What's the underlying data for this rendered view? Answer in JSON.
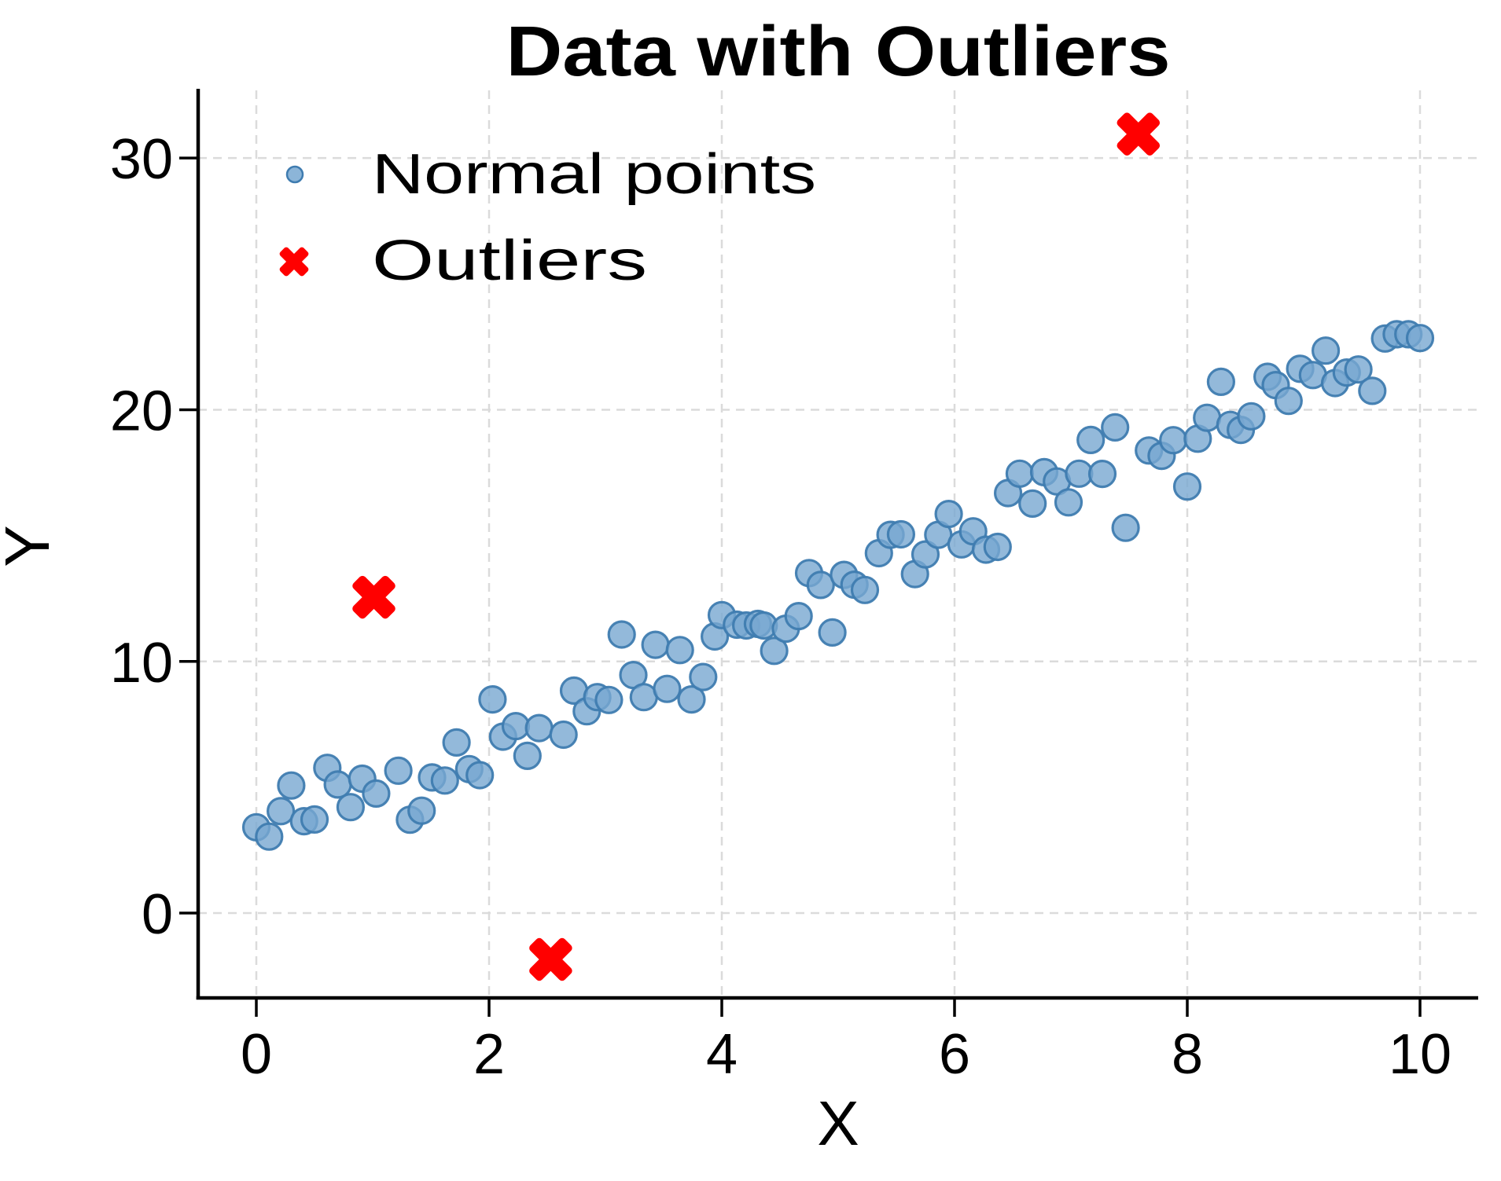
{
  "title": "Data with Outliers",
  "axes": {
    "x_label": "X",
    "y_label": "Y",
    "x_ticks": [
      0,
      2,
      4,
      6,
      8,
      10
    ],
    "y_ticks": [
      0,
      10,
      20,
      30
    ],
    "xlim": [
      -0.5,
      10.5
    ],
    "ylim": [
      -3.37,
      32.69
    ],
    "grid": true,
    "grid_style": "dashed"
  },
  "legend": {
    "position": "upper left",
    "items": [
      {
        "label": "Normal points",
        "marker": "circle-icon"
      },
      {
        "label": "Outliers",
        "marker": "x-icon"
      }
    ]
  },
  "colors": {
    "normal_fill": "#78A8D1",
    "normal_edge": "#3F7CB0",
    "outlier": "#FF0000",
    "grid": "#DBDBDB",
    "spine": "#000000",
    "background": "#FFFFFF"
  },
  "chart_data": {
    "type": "scatter",
    "title": "Data with Outliers",
    "xlabel": "X",
    "ylabel": "Y",
    "xlim": [
      -0.5,
      10.5
    ],
    "ylim": [
      -3.37,
      32.69
    ],
    "grid": true,
    "legend_position": "upper left",
    "series": [
      {
        "name": "Normal points",
        "marker": "circle",
        "color": "#78A8D1",
        "points": [
          [
            0.0,
            3.41
          ],
          [
            0.11,
            3.04
          ],
          [
            0.21,
            4.05
          ],
          [
            0.3,
            5.07
          ],
          [
            0.41,
            3.65
          ],
          [
            0.5,
            3.72
          ],
          [
            0.61,
            5.77
          ],
          [
            0.7,
            5.11
          ],
          [
            0.81,
            4.21
          ],
          [
            0.91,
            5.34
          ],
          [
            1.03,
            4.75
          ],
          [
            1.22,
            5.66
          ],
          [
            1.32,
            3.71
          ],
          [
            1.42,
            4.07
          ],
          [
            1.51,
            5.39
          ],
          [
            1.62,
            5.27
          ],
          [
            1.72,
            6.78
          ],
          [
            1.83,
            5.72
          ],
          [
            1.92,
            5.48
          ],
          [
            2.03,
            8.49
          ],
          [
            2.12,
            7.01
          ],
          [
            2.23,
            7.43
          ],
          [
            2.33,
            6.25
          ],
          [
            2.43,
            7.35
          ],
          [
            2.64,
            7.09
          ],
          [
            2.73,
            8.84
          ],
          [
            2.84,
            8.02
          ],
          [
            2.93,
            8.58
          ],
          [
            3.03,
            8.47
          ],
          [
            3.14,
            11.07
          ],
          [
            3.24,
            9.46
          ],
          [
            3.33,
            8.58
          ],
          [
            3.43,
            10.66
          ],
          [
            3.53,
            8.91
          ],
          [
            3.64,
            10.45
          ],
          [
            3.74,
            8.49
          ],
          [
            3.84,
            9.38
          ],
          [
            3.94,
            10.99
          ],
          [
            4.0,
            11.84
          ],
          [
            4.13,
            11.46
          ],
          [
            4.21,
            11.43
          ],
          [
            4.31,
            11.49
          ],
          [
            4.36,
            11.43
          ],
          [
            4.45,
            10.42
          ],
          [
            4.55,
            11.3
          ],
          [
            4.66,
            11.8
          ],
          [
            4.75,
            13.51
          ],
          [
            4.85,
            13.04
          ],
          [
            4.95,
            11.15
          ],
          [
            5.05,
            13.44
          ],
          [
            5.14,
            13.05
          ],
          [
            5.23,
            12.84
          ],
          [
            5.35,
            14.3
          ],
          [
            5.45,
            15.03
          ],
          [
            5.54,
            15.05
          ],
          [
            5.66,
            13.47
          ],
          [
            5.75,
            14.25
          ],
          [
            5.86,
            15.03
          ],
          [
            5.95,
            15.86
          ],
          [
            6.06,
            14.65
          ],
          [
            6.16,
            15.17
          ],
          [
            6.27,
            14.44
          ],
          [
            6.37,
            14.55
          ],
          [
            6.46,
            16.69
          ],
          [
            6.56,
            17.46
          ],
          [
            6.67,
            16.27
          ],
          [
            6.77,
            17.52
          ],
          [
            6.88,
            17.15
          ],
          [
            6.98,
            16.32
          ],
          [
            7.07,
            17.46
          ],
          [
            7.17,
            18.8
          ],
          [
            7.27,
            17.45
          ],
          [
            7.38,
            19.3
          ],
          [
            7.47,
            15.31
          ],
          [
            7.67,
            18.38
          ],
          [
            7.78,
            18.17
          ],
          [
            7.88,
            18.79
          ],
          [
            8.0,
            16.95
          ],
          [
            8.09,
            18.85
          ],
          [
            8.17,
            19.68
          ],
          [
            8.29,
            21.11
          ],
          [
            8.37,
            19.4
          ],
          [
            8.46,
            19.2
          ],
          [
            8.55,
            19.74
          ],
          [
            8.69,
            21.31
          ],
          [
            8.76,
            20.98
          ],
          [
            8.87,
            20.35
          ],
          [
            8.97,
            21.63
          ],
          [
            9.08,
            21.38
          ],
          [
            9.19,
            22.35
          ],
          [
            9.27,
            21.06
          ],
          [
            9.37,
            21.48
          ],
          [
            9.47,
            21.6
          ],
          [
            9.59,
            20.75
          ],
          [
            9.7,
            22.83
          ],
          [
            9.8,
            23.0
          ],
          [
            9.9,
            23.0
          ],
          [
            10.0,
            22.85
          ]
        ]
      },
      {
        "name": "Outliers",
        "marker": "X",
        "color": "#FF0000",
        "points": [
          [
            1.01,
            12.55
          ],
          [
            2.53,
            -1.84
          ],
          [
            7.58,
            30.95
          ]
        ]
      }
    ]
  }
}
